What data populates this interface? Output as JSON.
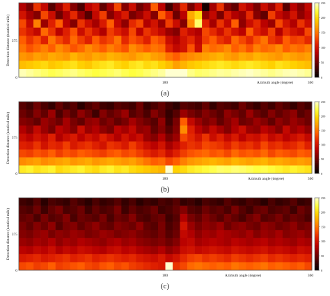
{
  "colors": {
    "scale": [
      "#000000",
      "#3a0000",
      "#7a0000",
      "#b80000",
      "#e02000",
      "#ff5a00",
      "#ff9a00",
      "#ffd000",
      "#ffff40",
      "#ffffd0"
    ],
    "frame": "#555555",
    "text": "#222222"
  },
  "chart_data": [
    {
      "type": "heatmap",
      "caption": "(a)",
      "ylabel": "Detection distance (nautical mile)",
      "xlabel": "Azimuth angle (degree)",
      "x_ticks": [
        "180",
        "360"
      ],
      "x_range": [
        0,
        360
      ],
      "y_ticks": [
        "0",
        "375"
      ],
      "colorbar_ticks": [
        "250",
        "200",
        "150",
        "100",
        "50",
        "0"
      ],
      "colorbar_range": [
        0,
        250
      ],
      "bins": [
        [
          80,
          55,
          120,
          90,
          40,
          70,
          110,
          60,
          35,
          85,
          100,
          45,
          75,
          130,
          60,
          95,
          50,
          70,
          140,
          85,
          30,
          65,
          115,
          55,
          90,
          10,
          75,
          120,
          60,
          45,
          100,
          80,
          55,
          95,
          70,
          110,
          40,
          85,
          60,
          90
        ],
        [
          100,
          75,
          60,
          130,
          95,
          50,
          80,
          115,
          70,
          40,
          90,
          125,
          60,
          85,
          105,
          55,
          70,
          95,
          60,
          140,
          110,
          50,
          85,
          175,
          200,
          65,
          90,
          55,
          105,
          80,
          70,
          115,
          60,
          45,
          125,
          90,
          75,
          100,
          65,
          85
        ],
        [
          130,
          90,
          155,
          70,
          110,
          140,
          85,
          60,
          120,
          95,
          75,
          105,
          140,
          90,
          65,
          115,
          130,
          80,
          100,
          70,
          125,
          95,
          60,
          160,
          230,
          110,
          75,
          120,
          90,
          140,
          65,
          95,
          115,
          85,
          70,
          130,
          100,
          80,
          120,
          95
        ],
        [
          120,
          105,
          90,
          145,
          120,
          85,
          110,
          135,
          95,
          120,
          100,
          80,
          125,
          110,
          95,
          130,
          85,
          120,
          105,
          90,
          70,
          60,
          110,
          90,
          80,
          130,
          115,
          95,
          120,
          100,
          85,
          140,
          110,
          95,
          125,
          80,
          115,
          100,
          90,
          130
        ],
        [
          140,
          120,
          135,
          110,
          150,
          130,
          115,
          145,
          125,
          110,
          140,
          120,
          130,
          150,
          115,
          135,
          125,
          110,
          140,
          130,
          95,
          80,
          100,
          115,
          90,
          125,
          140,
          120,
          110,
          145,
          130,
          115,
          135,
          150,
          120,
          110,
          140,
          125,
          130,
          115
        ],
        [
          150,
          135,
          145,
          155,
          140,
          160,
          150,
          135,
          145,
          160,
          150,
          140,
          155,
          145,
          135,
          160,
          150,
          140,
          150,
          145,
          110,
          90,
          100,
          135,
          95,
          155,
          145,
          150,
          160,
          140,
          150,
          135,
          155,
          145,
          150,
          160,
          140,
          150,
          145,
          155
        ],
        [
          165,
          160,
          170,
          165,
          175,
          170,
          165,
          180,
          170,
          165,
          175,
          170,
          180,
          175,
          170,
          165,
          175,
          180,
          170,
          165,
          150,
          140,
          155,
          160,
          165,
          170,
          175,
          180,
          170,
          165,
          175,
          170,
          180,
          175,
          170,
          165,
          175,
          170,
          165,
          170
        ],
        [
          185,
          190,
          195,
          200,
          190,
          195,
          200,
          205,
          195,
          190,
          200,
          205,
          210,
          200,
          195,
          205,
          210,
          200,
          205,
          195,
          185,
          170,
          180,
          190,
          195,
          200,
          205,
          210,
          205,
          200,
          205,
          210,
          205,
          200,
          195,
          205,
          200,
          195,
          190,
          185
        ],
        [
          245,
          240,
          235,
          230,
          225,
          228,
          232,
          236,
          230,
          226,
          222,
          225,
          228,
          232,
          226,
          222,
          225,
          230,
          235,
          240,
          250,
          250,
          250,
          236,
          230,
          232,
          236,
          240,
          238,
          242,
          245,
          248,
          244,
          240,
          236,
          240,
          244,
          246,
          242,
          238
        ]
      ]
    },
    {
      "type": "heatmap",
      "caption": "(b)",
      "ylabel": "Detection distance (nautical mile)",
      "xlabel": "Azimuth angle (degree)",
      "x_ticks": [
        "180",
        "360"
      ],
      "x_range": [
        0,
        360
      ],
      "y_ticks": [
        "0",
        "375"
      ],
      "colorbar_ticks": [
        "250",
        "200",
        "150",
        "100",
        "50",
        "0"
      ],
      "colorbar_range": [
        0,
        250
      ],
      "bins": [
        [
          40,
          30,
          50,
          35,
          25,
          45,
          30,
          40,
          20,
          35,
          45,
          30,
          25,
          40,
          35,
          30,
          50,
          25,
          35,
          45,
          30,
          20,
          40,
          35,
          30,
          45,
          25,
          40,
          35,
          30,
          50,
          35,
          25,
          40,
          30,
          45,
          35,
          25,
          40,
          30
        ],
        [
          50,
          40,
          60,
          45,
          70,
          35,
          55,
          40,
          65,
          50,
          30,
          60,
          45,
          55,
          70,
          40,
          50,
          35,
          60,
          45,
          25,
          40,
          70,
          55,
          45,
          60,
          50,
          40,
          65,
          55,
          45,
          70,
          50,
          40,
          60,
          45,
          55,
          65,
          40,
          50
        ],
        [
          60,
          55,
          45,
          70,
          60,
          50,
          75,
          55,
          45,
          65,
          70,
          50,
          60,
          45,
          55,
          75,
          60,
          50,
          40,
          65,
          30,
          55,
          140,
          90,
          70,
          55,
          65,
          45,
          60,
          75,
          50,
          55,
          70,
          60,
          45,
          65,
          55,
          70,
          60,
          50
        ],
        [
          80,
          65,
          90,
          70,
          55,
          85,
          75,
          60,
          95,
          70,
          80,
          65,
          55,
          85,
          75,
          90,
          65,
          70,
          45,
          60,
          40,
          60,
          160,
          110,
          85,
          70,
          90,
          75,
          60,
          80,
          95,
          70,
          65,
          85,
          75,
          60,
          90,
          70,
          80,
          65
        ],
        [
          95,
          85,
          100,
          90,
          110,
          80,
          95,
          105,
          85,
          100,
          90,
          110,
          95,
          80,
          100,
          85,
          95,
          70,
          60,
          80,
          55,
          70,
          130,
          115,
          100,
          120,
          95,
          110,
          90,
          105,
          85,
          100,
          95,
          110,
          90,
          100,
          85,
          95,
          105,
          90
        ],
        [
          110,
          105,
          120,
          100,
          115,
          110,
          125,
          105,
          115,
          120,
          110,
          100,
          120,
          115,
          105,
          125,
          110,
          95,
          85,
          100,
          75,
          90,
          110,
          120,
          115,
          130,
          125,
          120,
          110,
          125,
          115,
          120,
          110,
          130,
          115,
          120,
          110,
          115,
          125,
          110
        ],
        [
          130,
          125,
          135,
          130,
          140,
          125,
          135,
          130,
          140,
          135,
          130,
          125,
          135,
          140,
          130,
          135,
          125,
          115,
          105,
          115,
          95,
          110,
          125,
          135,
          140,
          145,
          135,
          140,
          130,
          145,
          135,
          140,
          135,
          145,
          130,
          140,
          135,
          130,
          140,
          135
        ],
        [
          160,
          165,
          170,
          160,
          165,
          170,
          175,
          165,
          170,
          175,
          165,
          170,
          175,
          170,
          165,
          170,
          160,
          150,
          140,
          145,
          130,
          140,
          155,
          165,
          170,
          175,
          180,
          175,
          170,
          180,
          175,
          170,
          175,
          180,
          170,
          175,
          170,
          165,
          170,
          165
        ],
        [
          210,
          215,
          205,
          210,
          215,
          200,
          205,
          210,
          215,
          205,
          200,
          210,
          215,
          205,
          210,
          200,
          195,
          190,
          185,
          180,
          250,
          195,
          200,
          210,
          215,
          220,
          225,
          230,
          228,
          232,
          230,
          226,
          222,
          225,
          220,
          215,
          210,
          215,
          210,
          205
        ]
      ]
    },
    {
      "type": "heatmap",
      "caption": "(c)",
      "ylabel": "Detection distance (nautical mile)",
      "xlabel": "Azimuth angle (degree)",
      "x_ticks": [
        "180",
        "360"
      ],
      "x_range": [
        0,
        360
      ],
      "y_ticks": [
        "0",
        "375"
      ],
      "colorbar_ticks": [
        "250",
        "200",
        "150",
        "100",
        "50",
        "0"
      ],
      "colorbar_range": [
        0,
        250
      ],
      "bins": [
        [
          30,
          25,
          40,
          20,
          35,
          30,
          25,
          40,
          30,
          20,
          35,
          25,
          30,
          40,
          25,
          35,
          20,
          30,
          25,
          35,
          30,
          40,
          25,
          30,
          20,
          35,
          30,
          25,
          40,
          30,
          25,
          35,
          30,
          20,
          35,
          25,
          30,
          40,
          25,
          30
        ],
        [
          40,
          35,
          50,
          30,
          45,
          55,
          35,
          40,
          50,
          30,
          45,
          35,
          40,
          55,
          30,
          45,
          35,
          40,
          50,
          30,
          35,
          45,
          60,
          40,
          35,
          50,
          40,
          45,
          35,
          55,
          40,
          30,
          45,
          50,
          35,
          40,
          45,
          30,
          50,
          40
        ],
        [
          45,
          50,
          35,
          55,
          40,
          45,
          60,
          35,
          50,
          45,
          40,
          55,
          35,
          50,
          45,
          60,
          40,
          35,
          45,
          50,
          30,
          40,
          80,
          55,
          45,
          60,
          50,
          40,
          55,
          45,
          35,
          50,
          60,
          40,
          45,
          55,
          40,
          50,
          45,
          35
        ],
        [
          55,
          45,
          60,
          50,
          65,
          40,
          55,
          60,
          45,
          55,
          65,
          50,
          45,
          60,
          55,
          50,
          65,
          45,
          40,
          55,
          35,
          45,
          100,
          70,
          55,
          65,
          60,
          70,
          50,
          60,
          65,
          55,
          50,
          65,
          60,
          50,
          55,
          65,
          50,
          55
        ],
        [
          60,
          55,
          65,
          70,
          55,
          65,
          60,
          70,
          65,
          55,
          60,
          70,
          65,
          55,
          60,
          65,
          55,
          50,
          45,
          55,
          40,
          50,
          90,
          80,
          65,
          75,
          70,
          80,
          75,
          70,
          65,
          75,
          60,
          70,
          65,
          75,
          60,
          65,
          70,
          60
        ],
        [
          70,
          65,
          75,
          70,
          80,
          65,
          75,
          70,
          80,
          75,
          70,
          65,
          75,
          80,
          70,
          75,
          65,
          60,
          55,
          60,
          50,
          60,
          85,
          90,
          75,
          80,
          85,
          80,
          75,
          85,
          80,
          75,
          80,
          85,
          75,
          80,
          75,
          70,
          80,
          75
        ],
        [
          85,
          80,
          90,
          85,
          95,
          80,
          90,
          85,
          95,
          90,
          85,
          80,
          90,
          95,
          85,
          90,
          80,
          75,
          70,
          80,
          65,
          75,
          95,
          100,
          90,
          95,
          100,
          95,
          90,
          100,
          95,
          90,
          95,
          100,
          90,
          95,
          90,
          85,
          95,
          90
        ],
        [
          105,
          110,
          115,
          105,
          110,
          115,
          120,
          110,
          115,
          120,
          110,
          115,
          120,
          115,
          110,
          115,
          105,
          100,
          95,
          105,
          90,
          100,
          115,
          125,
          130,
          120,
          125,
          120,
          115,
          125,
          120,
          115,
          120,
          125,
          115,
          120,
          115,
          110,
          115,
          110
        ],
        [
          130,
          135,
          125,
          130,
          140,
          125,
          130,
          135,
          140,
          130,
          125,
          135,
          140,
          130,
          135,
          125,
          120,
          115,
          110,
          105,
          250,
          120,
          130,
          145,
          150,
          145,
          140,
          145,
          140,
          150,
          145,
          140,
          145,
          150,
          140,
          145,
          140,
          135,
          140,
          130
        ]
      ]
    }
  ]
}
